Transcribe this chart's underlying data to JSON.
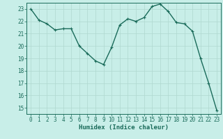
{
  "x": [
    0,
    1,
    2,
    3,
    4,
    5,
    6,
    7,
    8,
    9,
    10,
    11,
    12,
    13,
    14,
    15,
    16,
    17,
    18,
    19,
    20,
    21,
    22,
    23
  ],
  "y": [
    23.0,
    22.1,
    21.8,
    21.3,
    21.4,
    21.4,
    20.0,
    19.4,
    18.8,
    18.5,
    19.9,
    21.7,
    22.2,
    22.0,
    22.3,
    23.2,
    23.4,
    22.8,
    21.9,
    21.8,
    21.2,
    19.0,
    17.0,
    14.8
  ],
  "line_color": "#1a6b5a",
  "marker": "+",
  "marker_color": "#1a6b5a",
  "bg_color": "#c8eee8",
  "grid_color": "#afd8cf",
  "axis_color": "#1a6b5a",
  "xlabel": "Humidex (Indice chaleur)",
  "xlabel_color": "#1a6b5a",
  "ylim": [
    14.5,
    23.5
  ],
  "yticks": [
    15,
    16,
    17,
    18,
    19,
    20,
    21,
    22,
    23
  ],
  "xticks": [
    0,
    1,
    2,
    3,
    4,
    5,
    6,
    7,
    8,
    9,
    10,
    11,
    12,
    13,
    14,
    15,
    16,
    17,
    18,
    19,
    20,
    21,
    22,
    23
  ],
  "xlim": [
    -0.5,
    23.5
  ],
  "label_fontsize": 6.5,
  "tick_fontsize": 5.5,
  "linewidth": 1.0,
  "markersize": 3
}
